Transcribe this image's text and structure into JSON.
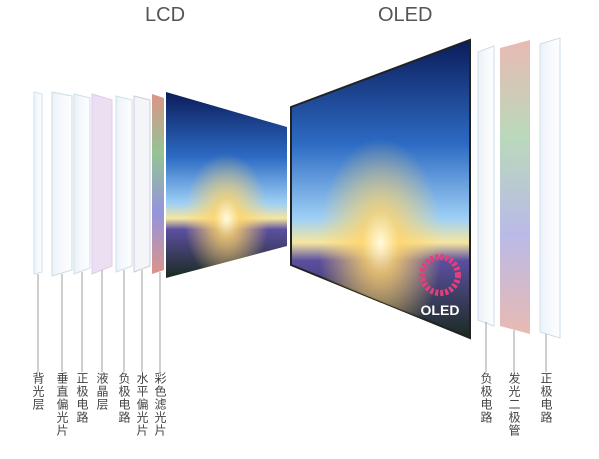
{
  "lcd": {
    "title": "LCD",
    "layers": [
      "背光层",
      "垂直偏光片",
      "正极电路",
      "液晶层",
      "负极电路",
      "水平偏光片",
      "彩色滤光片"
    ]
  },
  "oled": {
    "title": "OLED",
    "logo": "OLED",
    "layers": [
      "负极电路",
      "发光二极管",
      "正极电路"
    ]
  }
}
